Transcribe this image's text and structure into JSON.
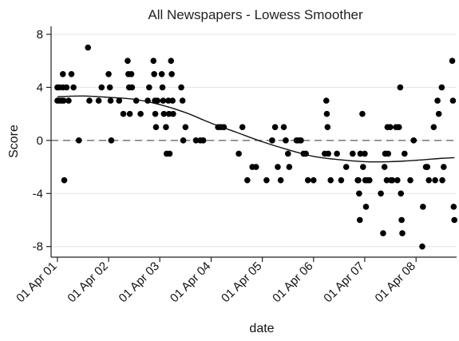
{
  "chart_data": {
    "type": "scatter",
    "title": "All Newspapers - Lowess Smoother",
    "xlabel": "date",
    "ylabel": "Score",
    "xlim": [
      "2001-02-15",
      "2009-01-15"
    ],
    "ylim": [
      -8.8,
      8.6
    ],
    "x_ticks": [
      "2001-04-01",
      "2002-04-01",
      "2003-04-01",
      "2004-04-01",
      "2005-04-01",
      "2006-04-01",
      "2007-04-01",
      "2008-04-01"
    ],
    "x_tick_labels": [
      "01 Apr 01",
      "01 Apr 02",
      "01 Apr 03",
      "01 Apr 04",
      "01 Apr 05",
      "01 Apr 06",
      "01 Apr 07",
      "01 Apr 08"
    ],
    "y_ticks": [
      -8,
      -4,
      0,
      4,
      8
    ],
    "y_tick_labels": [
      "-8",
      "-4",
      "0",
      "4",
      "8"
    ],
    "reference_line": {
      "y": 0,
      "style": "dashed",
      "color": "#808080"
    },
    "grid": {
      "horizontal": true,
      "vertical": false
    },
    "colors": {
      "points": "#000000",
      "smoother": "#111111",
      "grid": "#e6e6e6"
    },
    "series": [
      {
        "type": "scatter",
        "points": [
          [
            "2001-04-01",
            4
          ],
          [
            "2001-04-01",
            3
          ],
          [
            "2001-04-15",
            4
          ],
          [
            "2001-04-15",
            3
          ],
          [
            "2001-05-01",
            3
          ],
          [
            "2001-05-10",
            5
          ],
          [
            "2001-05-10",
            4
          ],
          [
            "2001-05-15",
            3
          ],
          [
            "2001-05-20",
            -3
          ],
          [
            "2001-06-05",
            4
          ],
          [
            "2001-06-20",
            3
          ],
          [
            "2001-07-10",
            5
          ],
          [
            "2001-07-25",
            4
          ],
          [
            "2001-09-01",
            0
          ],
          [
            "2001-11-05",
            7
          ],
          [
            "2001-11-15",
            3
          ],
          [
            "2002-01-20",
            3
          ],
          [
            "2002-02-10",
            4
          ],
          [
            "2002-04-01",
            5
          ],
          [
            "2002-04-10",
            4
          ],
          [
            "2002-04-15",
            3
          ],
          [
            "2002-04-20",
            0
          ],
          [
            "2002-06-15",
            3
          ],
          [
            "2002-07-15",
            2
          ],
          [
            "2002-08-15",
            6
          ],
          [
            "2002-08-20",
            5
          ],
          [
            "2002-08-25",
            4
          ],
          [
            "2002-08-30",
            2
          ],
          [
            "2002-09-10",
            5
          ],
          [
            "2002-09-15",
            4
          ],
          [
            "2002-10-15",
            3
          ],
          [
            "2002-11-15",
            2
          ],
          [
            "2003-01-05",
            3
          ],
          [
            "2003-01-15",
            4
          ],
          [
            "2003-02-15",
            6
          ],
          [
            "2003-02-20",
            5
          ],
          [
            "2003-02-25",
            3
          ],
          [
            "2003-02-28",
            2
          ],
          [
            "2003-03-05",
            1
          ],
          [
            "2003-03-15",
            3
          ],
          [
            "2003-04-15",
            5
          ],
          [
            "2003-04-20",
            4
          ],
          [
            "2003-04-25",
            3
          ],
          [
            "2003-04-30",
            2
          ],
          [
            "2003-05-15",
            1
          ],
          [
            "2003-05-20",
            -1
          ],
          [
            "2003-06-01",
            3
          ],
          [
            "2003-06-05",
            2
          ],
          [
            "2003-06-10",
            -1
          ],
          [
            "2003-06-20",
            6
          ],
          [
            "2003-06-25",
            5
          ],
          [
            "2003-07-01",
            3
          ],
          [
            "2003-07-05",
            2
          ],
          [
            "2003-09-01",
            4
          ],
          [
            "2003-09-10",
            3
          ],
          [
            "2003-09-15",
            0
          ],
          [
            "2003-10-01",
            1
          ],
          [
            "2003-12-15",
            0
          ],
          [
            "2004-01-15",
            0
          ],
          [
            "2004-02-05",
            0
          ],
          [
            "2004-05-20",
            1
          ],
          [
            "2004-06-10",
            1
          ],
          [
            "2004-07-01",
            1
          ],
          [
            "2004-10-15",
            -1
          ],
          [
            "2004-11-10",
            1
          ],
          [
            "2004-12-15",
            -3
          ],
          [
            "2005-01-20",
            -2
          ],
          [
            "2005-02-15",
            -2
          ],
          [
            "2005-05-01",
            -3
          ],
          [
            "2005-06-10",
            0
          ],
          [
            "2005-07-01",
            1
          ],
          [
            "2005-07-20",
            -2
          ],
          [
            "2005-08-10",
            -3
          ],
          [
            "2005-09-01",
            1
          ],
          [
            "2005-09-15",
            0
          ],
          [
            "2005-10-01",
            -1
          ],
          [
            "2005-10-10",
            -2
          ],
          [
            "2005-12-01",
            0
          ],
          [
            "2005-12-15",
            0
          ],
          [
            "2006-01-01",
            0
          ],
          [
            "2006-01-20",
            -1
          ],
          [
            "2006-02-05",
            -1
          ],
          [
            "2006-02-20",
            -3
          ],
          [
            "2006-04-01",
            -3
          ],
          [
            "2006-06-20",
            -1
          ],
          [
            "2006-07-01",
            3
          ],
          [
            "2006-07-05",
            2
          ],
          [
            "2006-07-10",
            1
          ],
          [
            "2006-07-15",
            -1
          ],
          [
            "2006-08-01",
            -3
          ],
          [
            "2006-09-15",
            -1
          ],
          [
            "2006-10-15",
            -3
          ],
          [
            "2006-11-20",
            -2
          ],
          [
            "2007-01-05",
            -1
          ],
          [
            "2007-02-10",
            -3
          ],
          [
            "2007-02-15",
            -3
          ],
          [
            "2007-02-20",
            -4
          ],
          [
            "2007-02-25",
            -6
          ],
          [
            "2007-03-01",
            -1
          ],
          [
            "2007-03-15",
            2
          ],
          [
            "2007-03-20",
            -2
          ],
          [
            "2007-04-01",
            -1
          ],
          [
            "2007-04-05",
            -3
          ],
          [
            "2007-04-10",
            -5
          ],
          [
            "2007-04-20",
            -3
          ],
          [
            "2007-05-05",
            -3
          ],
          [
            "2007-07-25",
            -4
          ],
          [
            "2007-08-10",
            -7
          ],
          [
            "2007-08-20",
            -2
          ],
          [
            "2007-08-25",
            -1
          ],
          [
            "2007-09-05",
            -3
          ],
          [
            "2007-09-10",
            1
          ],
          [
            "2007-09-15",
            -1
          ],
          [
            "2007-09-30",
            1
          ],
          [
            "2007-10-05",
            -3
          ],
          [
            "2007-10-15",
            -3
          ],
          [
            "2007-11-10",
            1
          ],
          [
            "2007-11-20",
            -3
          ],
          [
            "2007-12-01",
            1
          ],
          [
            "2007-12-10",
            4
          ],
          [
            "2007-12-15",
            -4
          ],
          [
            "2007-12-20",
            -6
          ],
          [
            "2007-12-25",
            -7
          ],
          [
            "2008-01-10",
            -1
          ],
          [
            "2008-02-20",
            -3
          ],
          [
            "2008-03-15",
            0
          ],
          [
            "2008-05-15",
            -8
          ],
          [
            "2008-05-20",
            -5
          ],
          [
            "2008-06-10",
            -2
          ],
          [
            "2008-06-20",
            -2
          ],
          [
            "2008-07-01",
            -3
          ],
          [
            "2008-08-05",
            1
          ],
          [
            "2008-08-15",
            -3
          ],
          [
            "2008-09-01",
            3
          ],
          [
            "2008-09-10",
            2
          ],
          [
            "2008-10-01",
            4
          ],
          [
            "2008-10-05",
            -3
          ],
          [
            "2008-10-15",
            -2
          ],
          [
            "2008-12-15",
            6
          ],
          [
            "2008-12-20",
            3
          ],
          [
            "2008-12-25",
            -5
          ],
          [
            "2008-12-30",
            -6
          ]
        ]
      },
      {
        "type": "line",
        "points": [
          [
            "2001-04-01",
            3.3
          ],
          [
            "2001-10-01",
            3.35
          ],
          [
            "2002-04-01",
            3.25
          ],
          [
            "2002-10-01",
            3.1
          ],
          [
            "2003-04-01",
            2.7
          ],
          [
            "2003-10-01",
            2.1
          ],
          [
            "2004-04-01",
            1.3
          ],
          [
            "2004-10-01",
            0.6
          ],
          [
            "2005-04-01",
            -0.1
          ],
          [
            "2005-10-01",
            -0.7
          ],
          [
            "2006-04-01",
            -1.2
          ],
          [
            "2006-10-01",
            -1.45
          ],
          [
            "2007-04-01",
            -1.6
          ],
          [
            "2007-10-01",
            -1.6
          ],
          [
            "2008-04-01",
            -1.5
          ],
          [
            "2008-10-01",
            -1.35
          ],
          [
            "2008-12-31",
            -1.3
          ]
        ]
      }
    ]
  }
}
